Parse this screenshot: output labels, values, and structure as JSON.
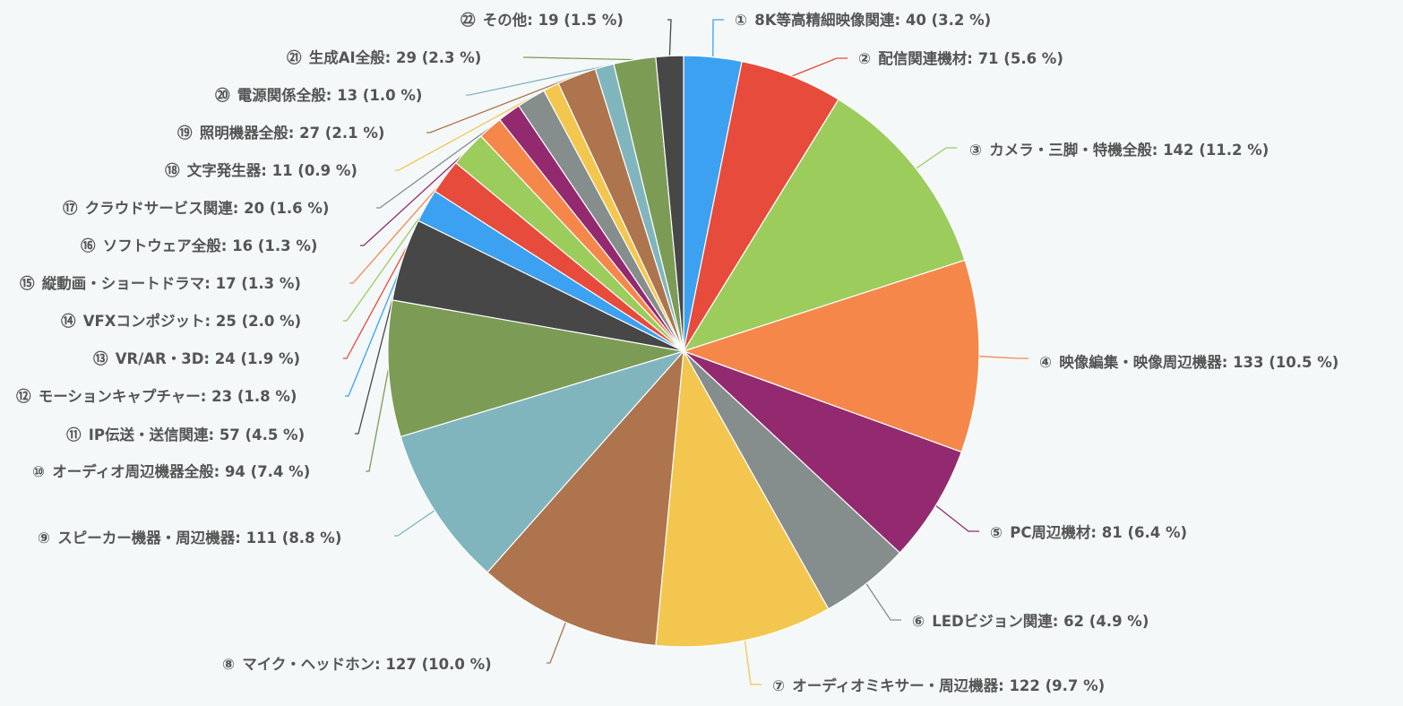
{
  "chart_data": {
    "type": "pie",
    "title": "",
    "legend": "none",
    "slices": [
      {
        "marker": "①",
        "name": "8K等高精細映像関連",
        "value": 40,
        "percent": "3.2 %",
        "color": "#3ba1f0"
      },
      {
        "marker": "②",
        "name": "配信関連機材",
        "value": 71,
        "percent": "5.6 %",
        "color": "#e64b3b"
      },
      {
        "marker": "③",
        "name": "カメラ・三脚・特機全般",
        "value": 142,
        "percent": "11.2 %",
        "color": "#9ccc5c"
      },
      {
        "marker": "④",
        "name": "映像編集・映像周辺機器",
        "value": 133,
        "percent": "10.5 %",
        "color": "#f5874a"
      },
      {
        "marker": "⑤",
        "name": "PC周辺機材",
        "value": 81,
        "percent": "6.4 %",
        "color": "#932a70"
      },
      {
        "marker": "⑥",
        "name": "LEDビジョン関連",
        "value": 62,
        "percent": "4.9 %",
        "color": "#868d8d"
      },
      {
        "marker": "⑦",
        "name": "オーディオミキサー・周辺機器",
        "value": 122,
        "percent": "9.7 %",
        "color": "#f3c64f"
      },
      {
        "marker": "⑧",
        "name": "マイク・ヘッドホン",
        "value": 127,
        "percent": "10.0 %",
        "color": "#ad744d"
      },
      {
        "marker": "⑨",
        "name": "スピーカー機器・周辺機器",
        "value": 111,
        "percent": "8.8 %",
        "color": "#80b5be"
      },
      {
        "marker": "⑩",
        "name": "オーディオ周辺機器全般",
        "value": 94,
        "percent": "7.4 %",
        "color": "#7c9c56"
      },
      {
        "marker": "⑪",
        "name": "IP伝送・送信関連",
        "value": 57,
        "percent": "4.5 %",
        "color": "#474747"
      },
      {
        "marker": "⑫",
        "name": "モーションキャプチャー",
        "value": 23,
        "percent": "1.8 %",
        "color": "#3ba1f0"
      },
      {
        "marker": "⑬",
        "name": "VR/AR・3D",
        "value": 24,
        "percent": "1.9 %",
        "color": "#e64b3b"
      },
      {
        "marker": "⑭",
        "name": "VFXコンポジット",
        "value": 25,
        "percent": "2.0 %",
        "color": "#9ccc5c"
      },
      {
        "marker": "⑮",
        "name": "縦動画・ショートドラマ",
        "value": 17,
        "percent": "1.3 %",
        "color": "#f5874a"
      },
      {
        "marker": "⑯",
        "name": "ソフトウェア全般",
        "value": 16,
        "percent": "1.3 %",
        "color": "#932a70"
      },
      {
        "marker": "⑰",
        "name": "クラウドサービス関連",
        "value": 20,
        "percent": "1.6 %",
        "color": "#868d8d"
      },
      {
        "marker": "⑱",
        "name": "文字発生器",
        "value": 11,
        "percent": "0.9 %",
        "color": "#f3c64f"
      },
      {
        "marker": "⑲",
        "name": "照明機器全般",
        "value": 27,
        "percent": "2.1 %",
        "color": "#ad744d"
      },
      {
        "marker": "⑳",
        "name": "電源関係全般",
        "value": 13,
        "percent": "1.0 %",
        "color": "#80b5be"
      },
      {
        "marker": "㉑",
        "name": "生成AI全般",
        "value": 29,
        "percent": "2.3 %",
        "color": "#7c9c56"
      },
      {
        "marker": "㉒",
        "name": "その他",
        "value": 19,
        "percent": "1.5 %",
        "color": "#474747"
      }
    ]
  }
}
